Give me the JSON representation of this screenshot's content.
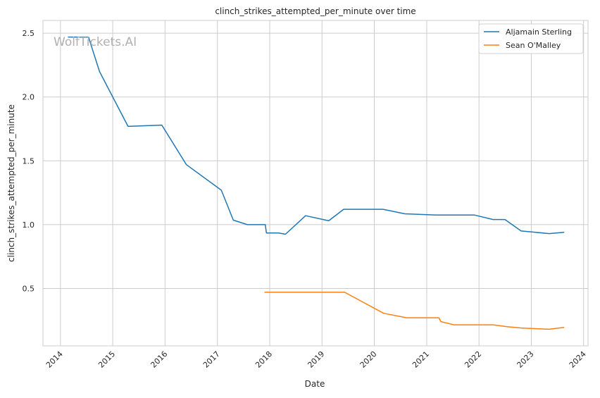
{
  "chart_data": {
    "type": "line",
    "title": "clinch_strikes_attempted_per_minute over time",
    "xlabel": "Date",
    "ylabel": "clinch_strikes_attempted_per_minute",
    "watermark": "WolfTickets.AI",
    "x_ticks": [
      "2014",
      "2015",
      "2016",
      "2017",
      "2018",
      "2019",
      "2020",
      "2021",
      "2022",
      "2023",
      "2024"
    ],
    "y_ticks": [
      "0.5",
      "1.0",
      "1.5",
      "2.0",
      "2.5"
    ],
    "xlim": [
      "2013-09-01",
      "2024-02-01"
    ],
    "ylim": [
      0.05,
      2.6
    ],
    "grid": true,
    "legend_position": "top-right",
    "series": [
      {
        "name": "Aljamain Sterling",
        "color": "#1f77b4",
        "points": [
          [
            "2014-02-22",
            2.47
          ],
          [
            "2014-07-16",
            2.47
          ],
          [
            "2014-10-01",
            2.2
          ],
          [
            "2015-04-18",
            1.77
          ],
          [
            "2015-12-10",
            1.78
          ],
          [
            "2016-05-29",
            1.47
          ],
          [
            "2017-01-28",
            1.27
          ],
          [
            "2017-04-22",
            1.035
          ],
          [
            "2017-07-29",
            1.0
          ],
          [
            "2017-12-01",
            1.0
          ],
          [
            "2017-12-09",
            0.935
          ],
          [
            "2018-03-03",
            0.935
          ],
          [
            "2018-04-21",
            0.925
          ],
          [
            "2018-09-08",
            1.07
          ],
          [
            "2019-02-17",
            1.03
          ],
          [
            "2019-06-01",
            1.12
          ],
          [
            "2020-03-02",
            1.12
          ],
          [
            "2020-08-01",
            1.085
          ],
          [
            "2021-03-06",
            1.075
          ],
          [
            "2021-12-01",
            1.075
          ],
          [
            "2022-04-09",
            1.04
          ],
          [
            "2022-07-01",
            1.04
          ],
          [
            "2022-10-22",
            0.95
          ],
          [
            "2023-05-06",
            0.93
          ],
          [
            "2023-08-19",
            0.94
          ]
        ]
      },
      {
        "name": "Sean O'Malley",
        "color": "#ff7f0e",
        "points": [
          [
            "2017-11-25",
            0.47
          ],
          [
            "2019-06-08",
            0.47
          ],
          [
            "2020-03-07",
            0.305
          ],
          [
            "2020-08-15",
            0.27
          ],
          [
            "2021-03-27",
            0.27
          ],
          [
            "2021-04-10",
            0.24
          ],
          [
            "2021-07-10",
            0.215
          ],
          [
            "2022-04-09",
            0.215
          ],
          [
            "2022-07-15",
            0.2
          ],
          [
            "2022-10-22",
            0.19
          ],
          [
            "2023-05-06",
            0.18
          ],
          [
            "2023-08-19",
            0.195
          ]
        ]
      }
    ]
  }
}
